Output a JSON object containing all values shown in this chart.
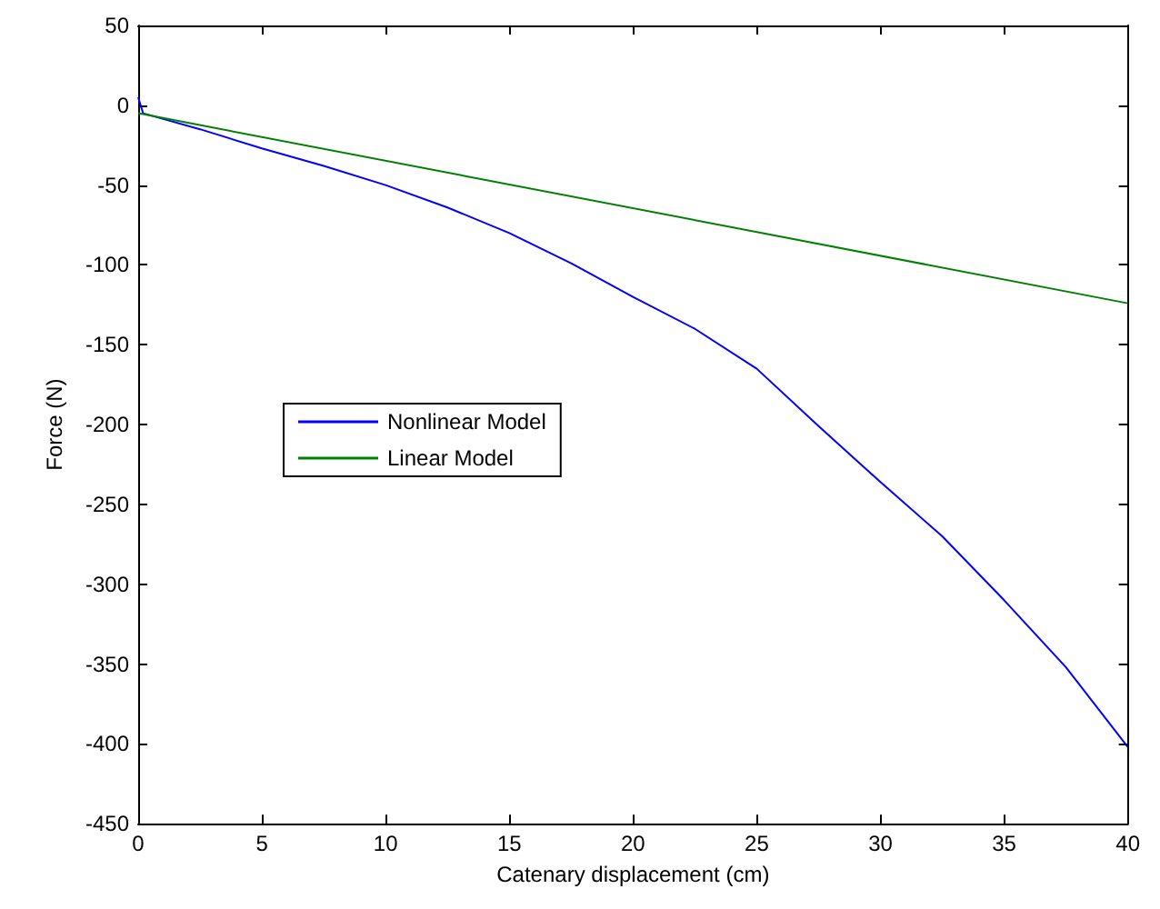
{
  "chart_data": {
    "type": "line",
    "xlabel": "Catenary displacement (cm)",
    "ylabel": "Force (N)",
    "xlim": [
      0,
      40
    ],
    "ylim": [
      -450,
      50
    ],
    "xticks": [
      0,
      5,
      10,
      15,
      20,
      25,
      30,
      35,
      40
    ],
    "yticks": [
      -450,
      -400,
      -350,
      -300,
      -250,
      -200,
      -150,
      -100,
      -50,
      0,
      50
    ],
    "grid": false,
    "legend": "left",
    "marker": "none",
    "line_style": "solid",
    "series": [
      {
        "name": "Nonlinear Model",
        "color": "#0000ff",
        "x": [
          0,
          0.2,
          2.5,
          5,
          7.5,
          10,
          12.5,
          15,
          17.5,
          20,
          22.5,
          25,
          27.5,
          30,
          32.5,
          35,
          37.5,
          40
        ],
        "values": [
          5,
          -5,
          -15,
          -27,
          -38,
          -50,
          -64,
          -80,
          -99,
          -120,
          -140,
          -165,
          -201,
          -236,
          -270,
          -310,
          -352,
          -402
        ]
      },
      {
        "name": "Linear Model",
        "color": "#008000",
        "x": [
          0,
          40
        ],
        "values": [
          -5,
          -124
        ]
      }
    ]
  }
}
